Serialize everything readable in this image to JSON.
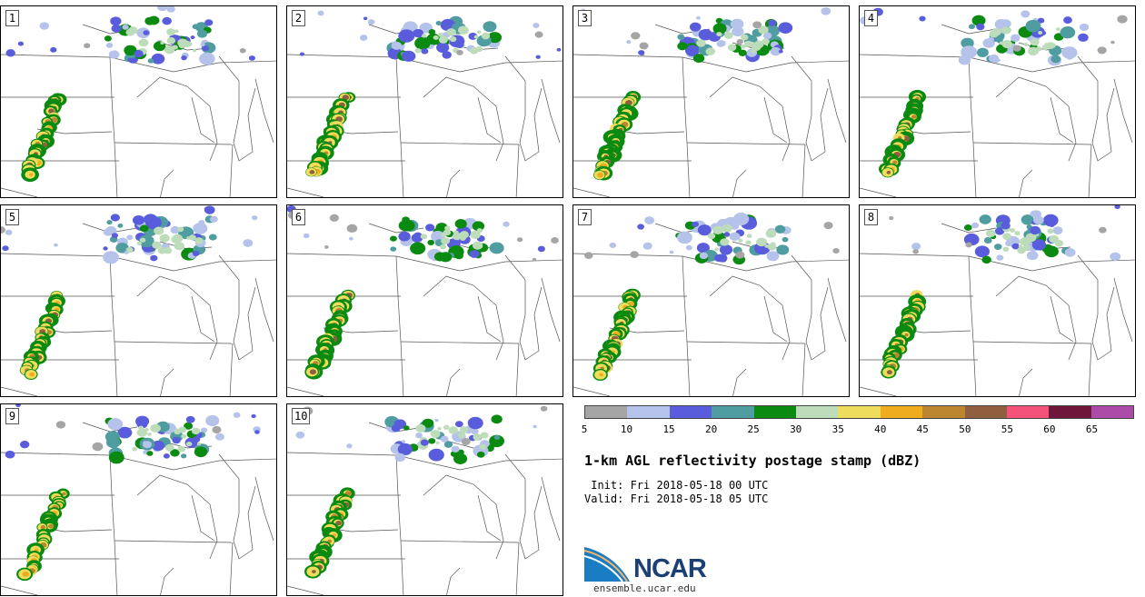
{
  "panels": [
    {
      "id": "1",
      "label": "1"
    },
    {
      "id": "2",
      "label": "2"
    },
    {
      "id": "3",
      "label": "3"
    },
    {
      "id": "4",
      "label": "4"
    },
    {
      "id": "5",
      "label": "5"
    },
    {
      "id": "6",
      "label": "6"
    },
    {
      "id": "7",
      "label": "7"
    },
    {
      "id": "8",
      "label": "8"
    },
    {
      "id": "9",
      "label": "9"
    },
    {
      "id": "10",
      "label": "10"
    }
  ],
  "colorbar": {
    "bins": [
      {
        "from": 5,
        "to": 10,
        "color": "#a5a5a5"
      },
      {
        "from": 10,
        "to": 15,
        "color": "#b5c3ea"
      },
      {
        "from": 15,
        "to": 20,
        "color": "#5a5ddb"
      },
      {
        "from": 20,
        "to": 25,
        "color": "#4f9da0"
      },
      {
        "from": 25,
        "to": 30,
        "color": "#0b8a12"
      },
      {
        "from": 30,
        "to": 35,
        "color": "#bddcb9"
      },
      {
        "from": 35,
        "to": 40,
        "color": "#eedd5c"
      },
      {
        "from": 40,
        "to": 45,
        "color": "#efad1d"
      },
      {
        "from": 45,
        "to": 50,
        "color": "#bc8630"
      },
      {
        "from": 50,
        "to": 55,
        "color": "#905f3f"
      },
      {
        "from": 55,
        "to": 60,
        "color": "#f45279"
      },
      {
        "from": 60,
        "to": 65,
        "color": "#6e173b"
      },
      {
        "from": 65,
        "to": 70,
        "color": "#ad4ba9"
      }
    ],
    "tick_labels": [
      "5",
      "10",
      "15",
      "20",
      "25",
      "30",
      "35",
      "40",
      "45",
      "50",
      "55",
      "60",
      "65"
    ]
  },
  "title": "1-km AGL reflectivity postage stamp (dBZ)",
  "init_line": " Init: Fri 2018-05-18 00 UTC",
  "valid_line": "Valid: Fri 2018-05-18 05 UTC",
  "logo": {
    "name": "NCAR",
    "url": "ensemble.ucar.edu"
  }
}
